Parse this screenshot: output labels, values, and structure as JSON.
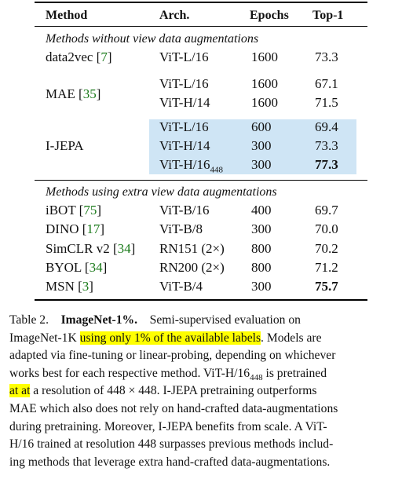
{
  "table": {
    "headers": [
      "Method",
      "Arch.",
      "Epochs",
      "Top-1"
    ],
    "section1_title": "Methods without view data augmentations",
    "section2_title": "Methods using extra view data augmentations",
    "rows": [
      {
        "method": "data2vec",
        "ref": "7",
        "arch": "ViT-L/16",
        "epochs": "1600",
        "top1": "73.3"
      },
      {
        "method": "MAE",
        "ref": "35",
        "arch": "ViT-L/16",
        "epochs": "1600",
        "top1": "67.1"
      },
      {
        "method": "",
        "ref": "",
        "arch": "ViT-H/14",
        "epochs": "1600",
        "top1": "71.5"
      },
      {
        "method": "I-JEPA",
        "ref": "",
        "arch": "ViT-L/16",
        "epochs": "600",
        "top1": "69.4"
      },
      {
        "method": "",
        "ref": "",
        "arch": "ViT-H/14",
        "epochs": "300",
        "top1": "73.3"
      },
      {
        "method": "",
        "ref": "",
        "arch": "ViT-H/16",
        "arch_sub": "448",
        "epochs": "300",
        "top1": "77.3"
      },
      {
        "method": "iBOT",
        "ref": "75",
        "arch": "ViT-B/16",
        "epochs": "400",
        "top1": "69.7"
      },
      {
        "method": "DINO",
        "ref": "17",
        "arch": "ViT-B/8",
        "epochs": "300",
        "top1": "70.0"
      },
      {
        "method": "SimCLR v2",
        "ref": "34",
        "arch": "RN151 (2×)",
        "epochs": "800",
        "top1": "70.2"
      },
      {
        "method": "BYOL",
        "ref": "34",
        "arch": "RN200 (2×)",
        "epochs": "800",
        "top1": "71.2"
      },
      {
        "method": "MSN",
        "ref": "3",
        "arch": "ViT-B/4",
        "epochs": "300",
        "top1": "75.7"
      }
    ]
  },
  "caption": {
    "label": "Table 2.",
    "title": "ImageNet-1%.",
    "line1_rest": "Semi-supervised evaluation on",
    "line2_pre": "ImageNet-1K ",
    "line2_hl": "using only 1% of the available labels",
    "line2_post": ". Models are",
    "line3": "adapted via fine-tuning or linear-probing, depending on whichever",
    "line4_pre": "works best for each respective method. ViT-H/16",
    "line4_sub": "448",
    "line4_post": " is pretrained",
    "line5_hl": "at at",
    "line5_post": " a resolution of 448 × 448. I-JEPA pretraining outperforms",
    "line6": "MAE which also does not rely on hand-crafted data-augmentations",
    "line7": "during pretraining. Moreover, I-JEPA benefits from scale. A ViT-",
    "line8": "H/16 trained at resolution 448 surpasses previous methods includ-",
    "line9": "ing methods that leverage extra hand-crafted data-augmentations."
  },
  "colors": {
    "highlight_blue": "#cfe5f5",
    "highlight_yellow": "#ffff00",
    "ref_green": "#1a7a1a"
  }
}
